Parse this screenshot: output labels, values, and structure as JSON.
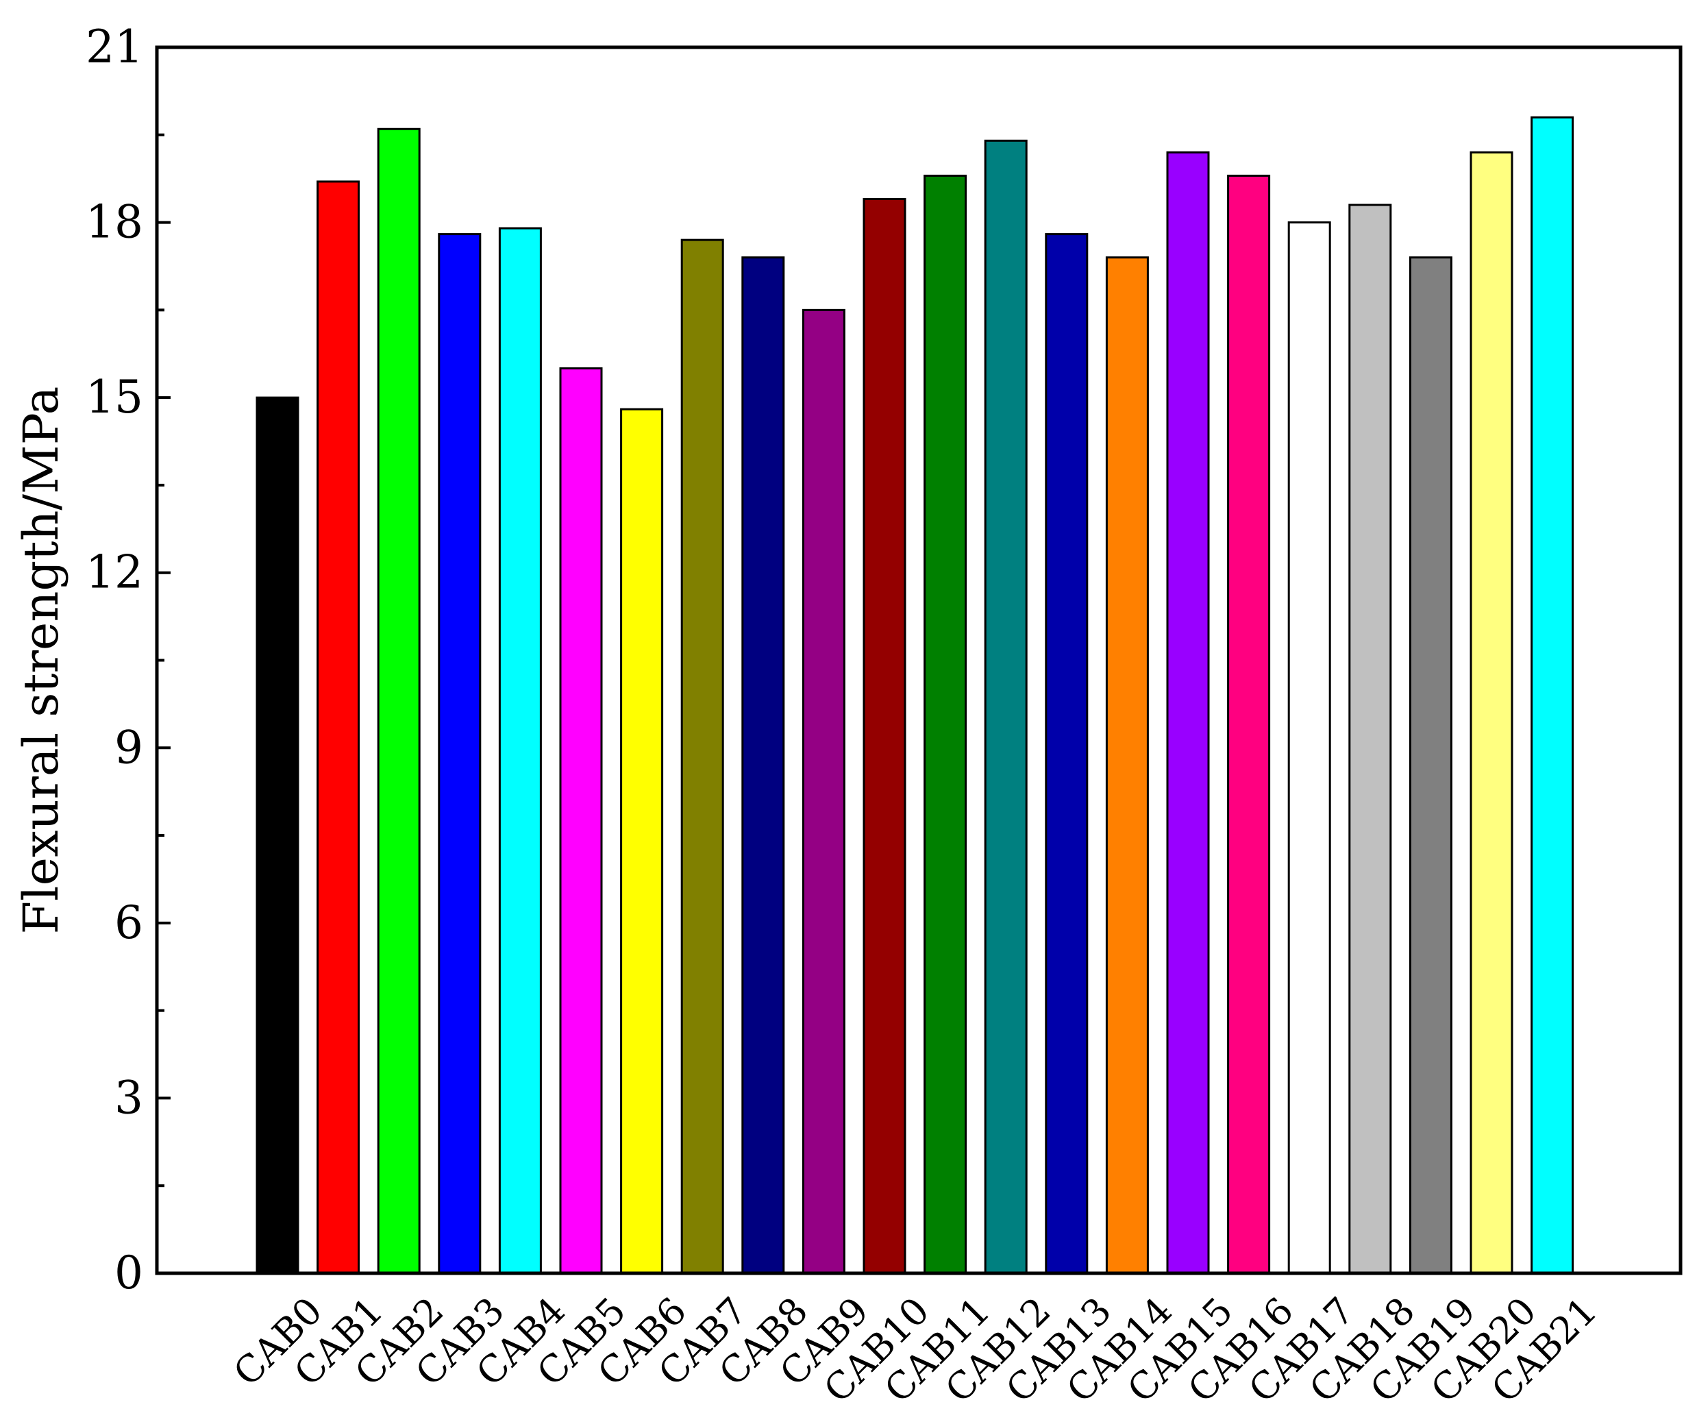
{
  "chart_data": {
    "type": "bar",
    "title": "",
    "xlabel": "",
    "ylabel": "Flexural strength/MPa",
    "ylim": [
      0,
      21
    ],
    "yticks": [
      0,
      3,
      6,
      9,
      12,
      15,
      18,
      21
    ],
    "grid": false,
    "categories": [
      "CAB0",
      "CAB1",
      "CAB2",
      "CAB3",
      "CAB4",
      "CAB5",
      "CAB6",
      "CAB7",
      "CAB8",
      "CAB9",
      "CAB10",
      "CAB11",
      "CAB12",
      "CAB13",
      "CAB14",
      "CAB15",
      "CAB16",
      "CAB17",
      "CAB18",
      "CAB19",
      "CAB20",
      "CAB21"
    ],
    "values": [
      15.0,
      18.7,
      19.6,
      17.8,
      17.9,
      15.5,
      14.8,
      17.7,
      17.4,
      16.5,
      18.4,
      18.8,
      19.4,
      17.8,
      17.4,
      19.2,
      18.8,
      18.0,
      18.3,
      17.4,
      19.2,
      19.8
    ],
    "colors": [
      "#000000",
      "#ff0000",
      "#00ff00",
      "#0000ff",
      "#00ffff",
      "#ff00ff",
      "#ffff00",
      "#808000",
      "#000080",
      "#940084",
      "#940000",
      "#008000",
      "#008080",
      "#0000aa",
      "#ff8000",
      "#9900ff",
      "#ff0080",
      "#ffffff",
      "#c0c0c0",
      "#808080",
      "#ffff80",
      "#00ffff"
    ]
  }
}
